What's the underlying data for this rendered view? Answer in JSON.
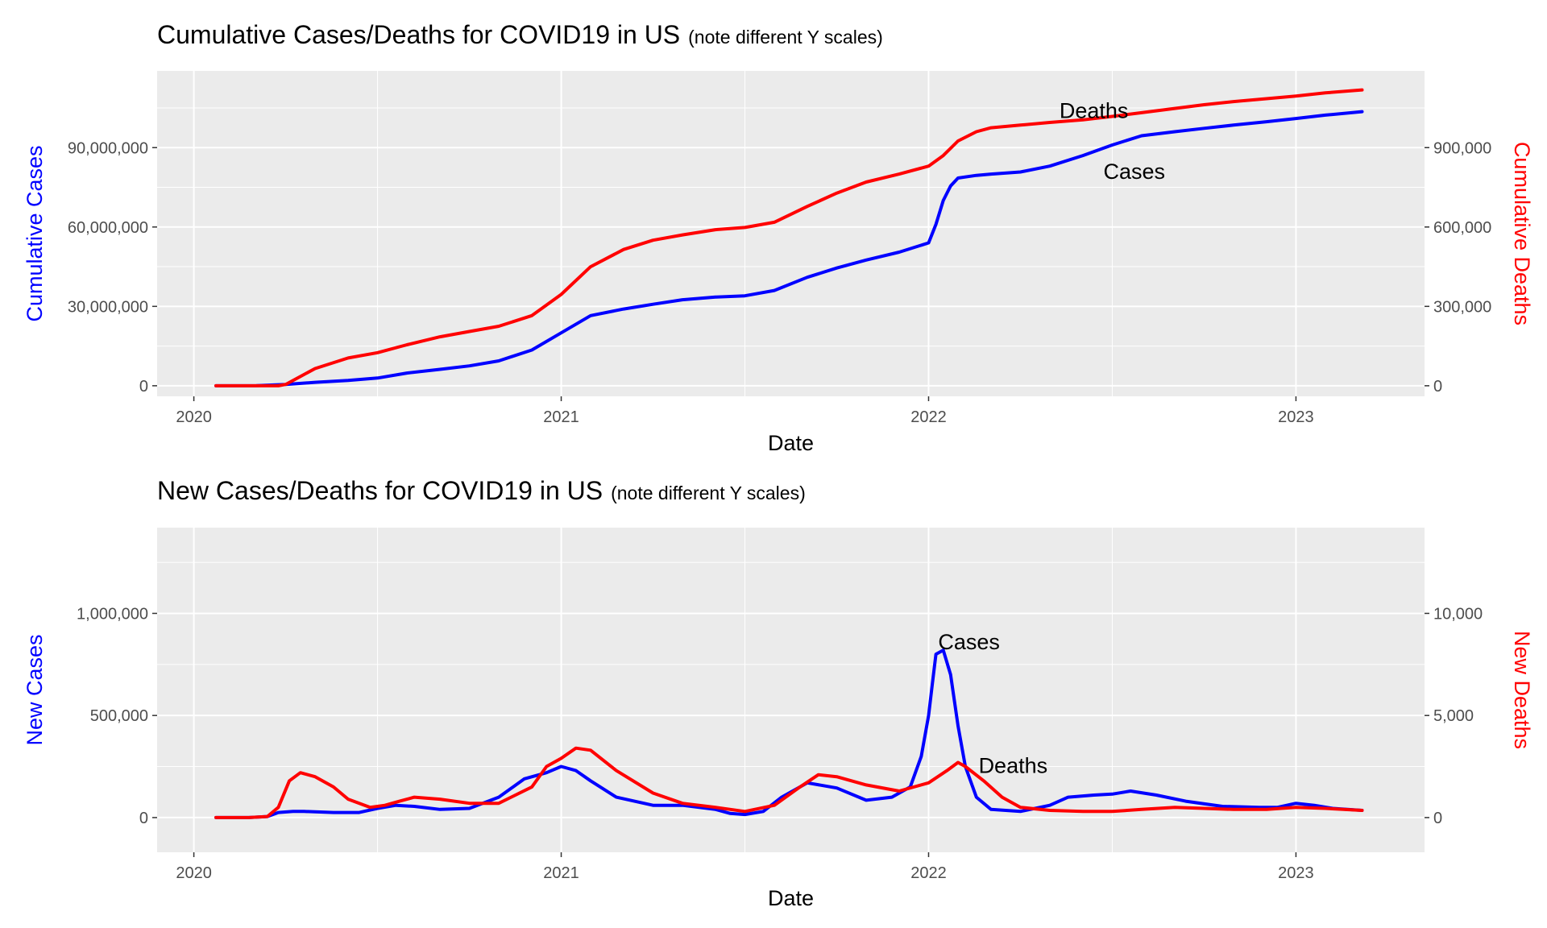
{
  "colors": {
    "cases": "#0000ff",
    "deaths": "#ff0000",
    "panel_bg": "#ebebeb",
    "grid": "#ffffff",
    "tick_text": "#4d4d4d"
  },
  "chart_data": [
    {
      "type": "line",
      "title": "Cumulative Cases/Deaths for COVID19 in US",
      "subtitle": "(note different Y scales)",
      "xlabel": "Date",
      "ylabel_left": "Cumulative Cases",
      "ylabel_right": "Cumulative Deaths",
      "x_ticks": [
        "2020",
        "2021",
        "2022",
        "2023"
      ],
      "xlim": [
        2019.9,
        2023.35
      ],
      "ylim_left": [
        -4000000,
        119000000
      ],
      "ylim_right": [
        -40000,
        1190000
      ],
      "y_ticks_left": [
        {
          "value": 0,
          "label": "0"
        },
        {
          "value": 30000000,
          "label": "30,000,000"
        },
        {
          "value": 60000000,
          "label": "60,000,000"
        },
        {
          "value": 90000000,
          "label": "90,000,000"
        }
      ],
      "y_ticks_right": [
        {
          "value": 0,
          "label": "0"
        },
        {
          "value": 300000,
          "label": "300,000"
        },
        {
          "value": 600000,
          "label": "600,000"
        },
        {
          "value": 900000,
          "label": "900,000"
        }
      ],
      "series": [
        {
          "name": "Cases",
          "axis": "left",
          "color": "#0000ff",
          "x": [
            2020.06,
            2020.17,
            2020.25,
            2020.33,
            2020.42,
            2020.5,
            2020.58,
            2020.67,
            2020.75,
            2020.83,
            2020.92,
            2021.0,
            2021.08,
            2021.17,
            2021.25,
            2021.33,
            2021.42,
            2021.5,
            2021.58,
            2021.67,
            2021.75,
            2021.83,
            2021.92,
            2022.0,
            2022.02,
            2022.04,
            2022.06,
            2022.08,
            2022.13,
            2022.17,
            2022.25,
            2022.33,
            2022.42,
            2022.5,
            2022.58,
            2022.67,
            2022.75,
            2022.83,
            2022.92,
            2023.0,
            2023.08,
            2023.18
          ],
          "values": [
            0,
            20000,
            500000,
            1300000,
            2000000,
            2900000,
            4800000,
            6200000,
            7500000,
            9400000,
            13500000,
            20000000,
            26500000,
            29000000,
            30800000,
            32500000,
            33500000,
            34000000,
            36000000,
            41000000,
            44500000,
            47500000,
            50500000,
            54000000,
            61000000,
            70000000,
            75500000,
            78500000,
            79500000,
            80000000,
            80800000,
            83000000,
            87000000,
            91000000,
            94500000,
            96000000,
            97300000,
            98500000,
            99800000,
            101000000,
            102300000,
            103600000
          ]
        },
        {
          "name": "Deaths",
          "axis": "right",
          "color": "#ff0000",
          "x": [
            2020.06,
            2020.17,
            2020.23,
            2020.25,
            2020.33,
            2020.42,
            2020.5,
            2020.58,
            2020.67,
            2020.75,
            2020.83,
            2020.92,
            2021.0,
            2021.08,
            2021.17,
            2021.25,
            2021.33,
            2021.42,
            2021.5,
            2021.58,
            2021.67,
            2021.75,
            2021.83,
            2021.92,
            2022.0,
            2022.04,
            2022.08,
            2022.13,
            2022.17,
            2022.25,
            2022.33,
            2022.42,
            2022.5,
            2022.58,
            2022.67,
            2022.75,
            2022.83,
            2022.92,
            2023.0,
            2023.08,
            2023.18
          ],
          "values": [
            0,
            0,
            0,
            5000,
            65000,
            105000,
            125000,
            155000,
            185000,
            205000,
            225000,
            265000,
            345000,
            450000,
            515000,
            550000,
            570000,
            590000,
            598000,
            618000,
            678000,
            728000,
            770000,
            800000,
            830000,
            870000,
            925000,
            960000,
            975000,
            985000,
            995000,
            1005000,
            1018000,
            1032000,
            1048000,
            1062000,
            1074000,
            1085000,
            1095000,
            1107000,
            1118000
          ]
        }
      ],
      "annotations": [
        {
          "text": "Deaths",
          "x": 2022.45,
          "y_left": 104000000
        },
        {
          "text": "Cases",
          "x": 2022.56,
          "y_left": 81000000
        }
      ]
    },
    {
      "type": "line",
      "title": "New Cases/Deaths for COVID19 in US",
      "subtitle": "(note different Y scales)",
      "xlabel": "Date",
      "ylabel_left": "New Cases",
      "ylabel_right": "New Deaths",
      "x_ticks": [
        "2020",
        "2021",
        "2022",
        "2023"
      ],
      "xlim": [
        2019.9,
        2023.35
      ],
      "ylim_left": [
        -170000,
        1420000
      ],
      "ylim_right": [
        -1700,
        14200
      ],
      "y_ticks_left": [
        {
          "value": 0,
          "label": "0"
        },
        {
          "value": 500000,
          "label": "500,000"
        },
        {
          "value": 1000000,
          "label": "1,000,000"
        }
      ],
      "y_ticks_right": [
        {
          "value": 0,
          "label": "0"
        },
        {
          "value": 5000,
          "label": "5,000"
        },
        {
          "value": 10000,
          "label": "10,000"
        }
      ],
      "series": [
        {
          "name": "Cases",
          "axis": "left",
          "color": "#0000ff",
          "x": [
            2020.06,
            2020.15,
            2020.2,
            2020.23,
            2020.27,
            2020.3,
            2020.38,
            2020.45,
            2020.5,
            2020.55,
            2020.6,
            2020.67,
            2020.75,
            2020.83,
            2020.9,
            2020.96,
            2021.0,
            2021.04,
            2021.08,
            2021.15,
            2021.25,
            2021.33,
            2021.42,
            2021.46,
            2021.5,
            2021.55,
            2021.6,
            2021.67,
            2021.75,
            2021.83,
            2021.9,
            2021.95,
            2021.98,
            2022.0,
            2022.01,
            2022.02,
            2022.04,
            2022.06,
            2022.08,
            2022.1,
            2022.13,
            2022.17,
            2022.25,
            2022.33,
            2022.38,
            2022.45,
            2022.5,
            2022.55,
            2022.62,
            2022.7,
            2022.8,
            2022.9,
            2022.95,
            2023.0,
            2023.05,
            2023.1,
            2023.18
          ],
          "values": [
            0,
            0,
            5000,
            25000,
            30000,
            30000,
            25000,
            25000,
            45000,
            60000,
            55000,
            40000,
            45000,
            100000,
            190000,
            220000,
            250000,
            230000,
            180000,
            100000,
            60000,
            60000,
            40000,
            20000,
            15000,
            30000,
            100000,
            170000,
            145000,
            85000,
            100000,
            150000,
            300000,
            500000,
            650000,
            800000,
            820000,
            700000,
            450000,
            250000,
            100000,
            40000,
            30000,
            60000,
            100000,
            110000,
            115000,
            130000,
            110000,
            80000,
            55000,
            50000,
            50000,
            70000,
            60000,
            45000,
            35000
          ]
        },
        {
          "name": "Deaths",
          "axis": "right",
          "color": "#ff0000",
          "x": [
            2020.06,
            2020.15,
            2020.2,
            2020.23,
            2020.26,
            2020.29,
            2020.33,
            2020.38,
            2020.42,
            2020.48,
            2020.52,
            2020.56,
            2020.6,
            2020.67,
            2020.75,
            2020.83,
            2020.92,
            2020.96,
            2021.0,
            2021.04,
            2021.08,
            2021.15,
            2021.25,
            2021.33,
            2021.42,
            2021.5,
            2021.58,
            2021.65,
            2021.7,
            2021.75,
            2021.83,
            2021.92,
            2022.0,
            2022.05,
            2022.08,
            2022.1,
            2022.15,
            2022.2,
            2022.25,
            2022.33,
            2022.42,
            2022.5,
            2022.58,
            2022.67,
            2022.75,
            2022.83,
            2022.92,
            2023.0,
            2023.08,
            2023.18
          ],
          "values": [
            0,
            0,
            50,
            500,
            1800,
            2200,
            2000,
            1500,
            900,
            500,
            600,
            800,
            1000,
            900,
            700,
            700,
            1500,
            2500,
            2900,
            3400,
            3300,
            2300,
            1200,
            700,
            500,
            300,
            600,
            1500,
            2100,
            2000,
            1600,
            1300,
            1700,
            2300,
            2700,
            2500,
            1800,
            1000,
            500,
            350,
            300,
            300,
            400,
            500,
            450,
            400,
            400,
            500,
            450,
            350
          ]
        }
      ],
      "annotations": [
        {
          "text": "Cases",
          "x": 2022.11,
          "y_left": 860000
        },
        {
          "text": "Deaths",
          "x": 2022.23,
          "y_left": 255000
        }
      ]
    }
  ]
}
